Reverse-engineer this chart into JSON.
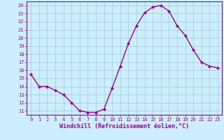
{
  "x": [
    0,
    1,
    2,
    3,
    4,
    5,
    6,
    7,
    8,
    9,
    10,
    11,
    12,
    13,
    14,
    15,
    16,
    17,
    18,
    19,
    20,
    21,
    22,
    23
  ],
  "y": [
    15.5,
    14.0,
    14.0,
    13.5,
    13.0,
    12.0,
    11.0,
    10.8,
    10.8,
    11.2,
    13.8,
    16.5,
    19.3,
    21.5,
    23.1,
    23.8,
    24.0,
    23.3,
    21.5,
    20.3,
    18.5,
    17.0,
    16.5,
    16.3
  ],
  "line_color": "#990099",
  "marker": "D",
  "markersize": 2.2,
  "linewidth": 1.0,
  "bg_color": "#cceeff",
  "grid_color": "#99cccc",
  "xlabel": "Windchill (Refroidissement éolien,°C)",
  "ylabel": "",
  "xlim": [
    -0.5,
    23.5
  ],
  "ylim": [
    10.5,
    24.5
  ],
  "yticks": [
    11,
    12,
    13,
    14,
    15,
    16,
    17,
    18,
    19,
    20,
    21,
    22,
    23,
    24
  ],
  "xticks": [
    0,
    1,
    2,
    3,
    4,
    5,
    6,
    7,
    8,
    9,
    10,
    11,
    12,
    13,
    14,
    15,
    16,
    17,
    18,
    19,
    20,
    21,
    22,
    23
  ],
  "tick_fontsize": 5.0,
  "xlabel_fontsize": 6.0,
  "tick_color": "#990099",
  "axis_color": "#990099"
}
